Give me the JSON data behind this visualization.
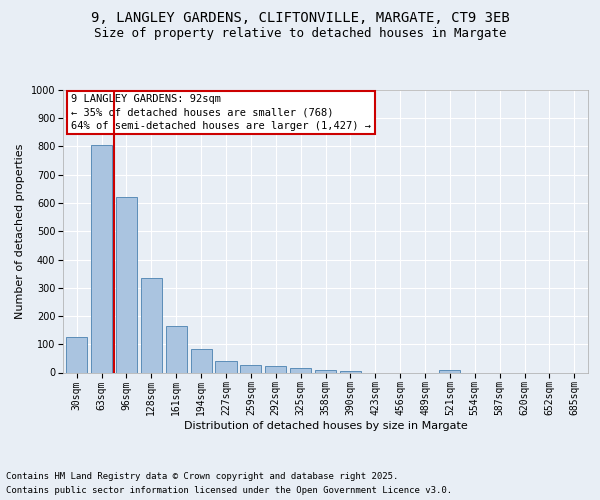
{
  "title_line1": "9, LANGLEY GARDENS, CLIFTONVILLE, MARGATE, CT9 3EB",
  "title_line2": "Size of property relative to detached houses in Margate",
  "xlabel": "Distribution of detached houses by size in Margate",
  "ylabel": "Number of detached properties",
  "categories": [
    "30sqm",
    "63sqm",
    "96sqm",
    "128sqm",
    "161sqm",
    "194sqm",
    "227sqm",
    "259sqm",
    "292sqm",
    "325sqm",
    "358sqm",
    "390sqm",
    "423sqm",
    "456sqm",
    "489sqm",
    "521sqm",
    "554sqm",
    "587sqm",
    "620sqm",
    "652sqm",
    "685sqm"
  ],
  "values": [
    125,
    805,
    620,
    335,
    165,
    82,
    40,
    27,
    22,
    17,
    10,
    7,
    0,
    0,
    0,
    8,
    0,
    0,
    0,
    0,
    0
  ],
  "bar_color": "#aac4e0",
  "bar_edge_color": "#5b8db8",
  "vline_color": "#cc0000",
  "vline_xindex": 1.5,
  "annotation_text": "9 LANGLEY GARDENS: 92sqm\n← 35% of detached houses are smaller (768)\n64% of semi-detached houses are larger (1,427) →",
  "annotation_box_color": "#ffffff",
  "annotation_box_edge": "#cc0000",
  "ylim": [
    0,
    1000
  ],
  "yticks": [
    0,
    100,
    200,
    300,
    400,
    500,
    600,
    700,
    800,
    900,
    1000
  ],
  "background_color": "#e8eef5",
  "grid_color": "#ffffff",
  "footer_line1": "Contains HM Land Registry data © Crown copyright and database right 2025.",
  "footer_line2": "Contains public sector information licensed under the Open Government Licence v3.0.",
  "title_fontsize": 10,
  "subtitle_fontsize": 9,
  "axis_label_fontsize": 8,
  "tick_fontsize": 7,
  "annotation_fontsize": 7.5,
  "footer_fontsize": 6.5
}
